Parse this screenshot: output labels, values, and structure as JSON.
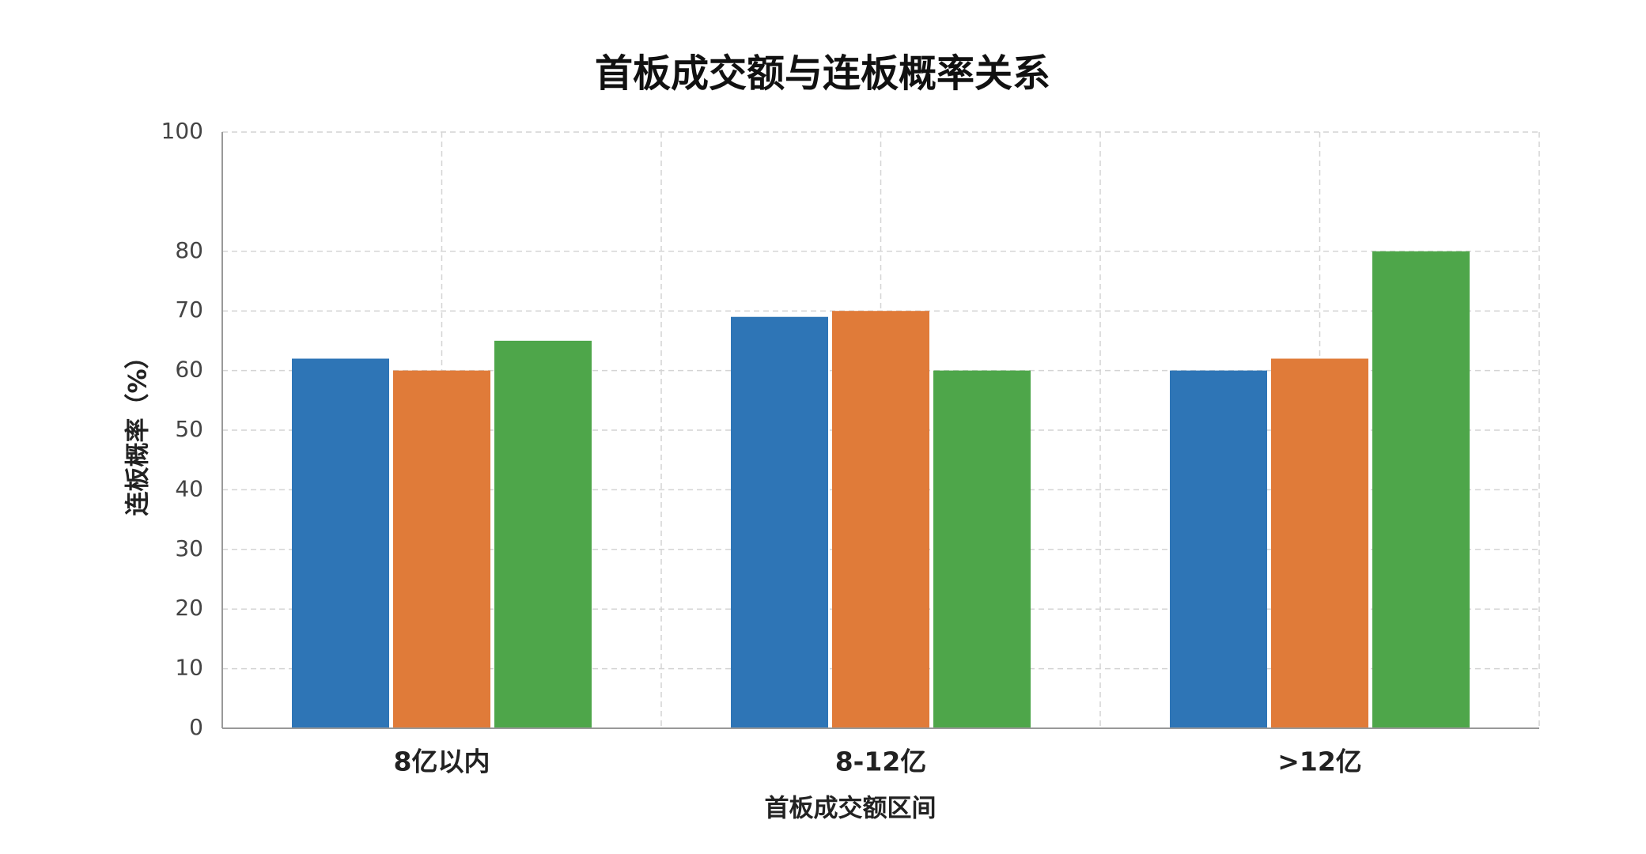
{
  "chart_data": {
    "type": "bar",
    "title": "首板成交额与连板概率关系",
    "x_label": "首板成交额区间",
    "y_label": "连板概率（%）",
    "categories": [
      "8亿以内",
      "8-12亿",
      ">12亿"
    ],
    "series": [
      {
        "color": "#2e75b6",
        "values": [
          62,
          69,
          60
        ]
      },
      {
        "color": "#e07b39",
        "values": [
          60,
          70,
          62
        ]
      },
      {
        "color": "#4ea64a",
        "values": [
          65,
          60,
          80
        ]
      }
    ],
    "ylim": [
      0,
      100
    ],
    "yticks": [
      0,
      10,
      20,
      30,
      40,
      50,
      60,
      70,
      80,
      100
    ],
    "grid": true
  }
}
